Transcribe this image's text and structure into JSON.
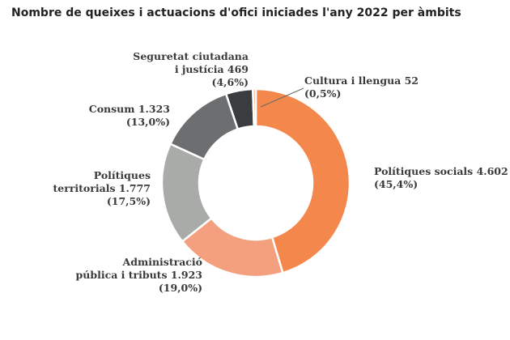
{
  "chart_data": {
    "type": "pie",
    "title": "Nombre de queixes i actuacions d'ofici iniciades l'any 2022 per àmbits",
    "slices": [
      {
        "label_lines": [
          "Polítiques socials  4.602",
          "(45,4%)"
        ],
        "value": 4602,
        "percent": "45,4%",
        "color": "#f4874b"
      },
      {
        "label_lines": [
          "Administració",
          "pública i tributs  1.923",
          "(19,0%)"
        ],
        "value": 1923,
        "percent": "19,0%",
        "color": "#f4a07e"
      },
      {
        "label_lines": [
          "Polítiques",
          "territorials  1.777",
          "(17,5%)"
        ],
        "value": 1777,
        "percent": "17,5%",
        "color": "#a9aba9"
      },
      {
        "label_lines": [
          "Consum  1.323",
          "(13,0%)"
        ],
        "value": 1323,
        "percent": "13,0%",
        "color": "#6c6e70"
      },
      {
        "label_lines": [
          "Seguretat ciutadana",
          "i justícia    469",
          "(4,6%)"
        ],
        "value": 469,
        "percent": "4,6%",
        "color": "#3a3d40"
      },
      {
        "label_lines": [
          "Cultura i llengua  52",
          "(0,5%)"
        ],
        "value": 52,
        "percent": "0,5%",
        "color": "#f9b38c"
      }
    ],
    "donut": true,
    "start": "top",
    "direction": "clockwise"
  }
}
